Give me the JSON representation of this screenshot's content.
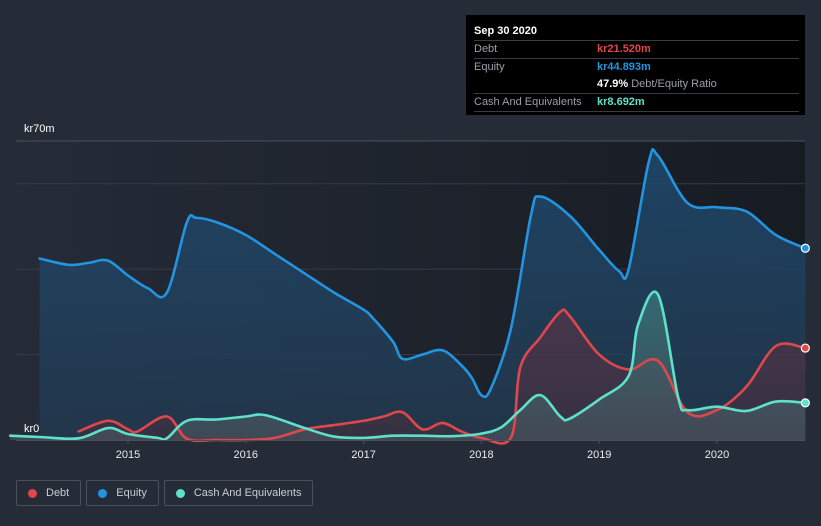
{
  "chart_data": {
    "type": "area",
    "title": "",
    "xlabel": "",
    "ylabel": "",
    "y_unit_prefix": "kr",
    "ylim": [
      0,
      70
    ],
    "y_tick_labels": [
      "kr0",
      "kr70m"
    ],
    "gridlines_m": [
      20,
      40,
      60,
      70
    ],
    "x_tick_labels": [
      "2015",
      "2016",
      "2017",
      "2018",
      "2019",
      "2020"
    ],
    "x_ticks": [
      2015,
      2016,
      2017,
      2018,
      2019,
      2020
    ],
    "xlim": [
      2013.92,
      2020.75
    ],
    "grid": true,
    "legend_position": "bottom-left",
    "series": [
      {
        "name": "Equity",
        "color": "#2394df",
        "x": [
          2014.25,
          2014.5,
          2014.67,
          2014.83,
          2015.0,
          2015.17,
          2015.33,
          2015.5,
          2015.58,
          2015.75,
          2016.0,
          2016.25,
          2016.5,
          2016.75,
          2017.0,
          2017.08,
          2017.25,
          2017.33,
          2017.5,
          2017.67,
          2017.83,
          2017.92,
          2018.0,
          2018.08,
          2018.25,
          2018.42,
          2018.5,
          2018.75,
          2019.0,
          2019.17,
          2019.25,
          2019.42,
          2019.5,
          2019.75,
          2020.0,
          2020.25,
          2020.5,
          2020.75
        ],
        "values": [
          42.5,
          41.0,
          41.5,
          42.0,
          38.5,
          35.5,
          34.5,
          51.0,
          52.0,
          51.0,
          48.0,
          43.5,
          39.0,
          34.5,
          30.5,
          28.5,
          23.0,
          19.0,
          20.0,
          21.0,
          17.5,
          14.5,
          10.5,
          12.0,
          26.0,
          52.5,
          57.0,
          52.5,
          44.5,
          39.5,
          40.0,
          65.0,
          66.5,
          55.5,
          54.5,
          53.5,
          48.0,
          44.893
        ]
      },
      {
        "name": "Debt",
        "color": "#e0474c",
        "x": [
          2014.58,
          2014.83,
          2015.0,
          2015.08,
          2015.33,
          2015.5,
          2015.75,
          2016.0,
          2016.25,
          2016.5,
          2016.75,
          2017.0,
          2017.17,
          2017.33,
          2017.5,
          2017.67,
          2017.83,
          2018.0,
          2018.25,
          2018.33,
          2018.5,
          2018.67,
          2018.75,
          2019.0,
          2019.25,
          2019.5,
          2019.75,
          2020.0,
          2020.25,
          2020.5,
          2020.75
        ],
        "values": [
          2.0,
          4.5,
          2.5,
          2.0,
          5.5,
          0.3,
          0.0,
          0.0,
          0.5,
          2.5,
          3.5,
          4.5,
          5.5,
          6.5,
          2.5,
          4.0,
          2.0,
          0.5,
          0.5,
          17.0,
          24.0,
          30.0,
          29.0,
          20.0,
          16.5,
          18.5,
          6.5,
          7.0,
          12.5,
          22.0,
          21.52
        ]
      },
      {
        "name": "Cash And Equivalents",
        "color": "#5ee1cb",
        "x": [
          2014.0,
          2014.25,
          2014.58,
          2014.83,
          2015.0,
          2015.25,
          2015.33,
          2015.5,
          2015.75,
          2016.0,
          2016.17,
          2016.5,
          2016.75,
          2017.0,
          2017.25,
          2017.5,
          2017.75,
          2018.0,
          2018.17,
          2018.33,
          2018.5,
          2018.67,
          2018.75,
          2019.0,
          2019.25,
          2019.33,
          2019.5,
          2019.67,
          2019.75,
          2020.0,
          2020.25,
          2020.5,
          2020.75
        ],
        "values": [
          1.0,
          0.7,
          0.4,
          2.8,
          1.4,
          0.5,
          0.4,
          4.5,
          4.8,
          5.5,
          5.8,
          2.8,
          0.8,
          0.5,
          1.0,
          1.0,
          0.9,
          1.5,
          3.0,
          7.0,
          10.5,
          5.5,
          5.0,
          9.5,
          15.0,
          27.0,
          34.0,
          10.0,
          7.0,
          7.8,
          6.8,
          9.0,
          8.692
        ]
      }
    ]
  },
  "tooltip": {
    "date": "Sep 30 2020",
    "rows": [
      {
        "label": "Debt",
        "value": "kr21.520m",
        "color": "#e0474c"
      },
      {
        "label": "Equity",
        "value": "kr44.893m",
        "color": "#2394df"
      },
      {
        "label": "Cash And Equivalents",
        "value": "kr8.692m",
        "color": "#5ee1cb"
      }
    ],
    "ratio_value": "47.9%",
    "ratio_label": "Debt/Equity Ratio"
  },
  "legend": [
    {
      "label": "Debt",
      "color": "#e0474c"
    },
    {
      "label": "Equity",
      "color": "#2394df"
    },
    {
      "label": "Cash And Equivalents",
      "color": "#5ee1cb"
    }
  ]
}
